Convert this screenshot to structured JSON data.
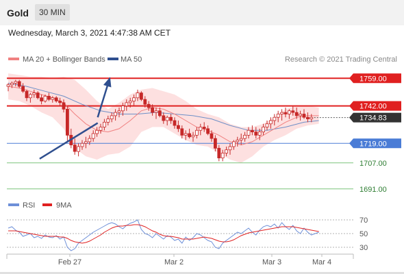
{
  "header": {
    "title": "Gold",
    "timeframe": "30 MIN"
  },
  "datetime": "Wednesday, March 3, 2021 4:47:38 AM CET",
  "legend": {
    "ma20_label": "MA 20 + Bollinger Bands",
    "ma50_label": "MA 50",
    "copyright": "Research © 2021 Trading Central",
    "rsi_label": "RSI",
    "ma9_label": "9MA"
  },
  "colors": {
    "candle": "#c62828",
    "ma20": "#f08080",
    "band": "#fde0e0",
    "ma50": "#6d8fc7",
    "resistance": "#e02020",
    "support_blue": "#4a7cd6",
    "support_green": "#7cc47c",
    "green_text": "#2e7d32",
    "trend": "#2f4f8f",
    "rsi": "#6d8fd8",
    "rsi_ma": "#e02020"
  },
  "chart_data": [
    {
      "type": "candlestick",
      "x_labels": [
        "Feb 27",
        "Mar 2",
        "Mar 3",
        "Mar 4"
      ],
      "ylim": [
        1685,
        1765
      ],
      "current_price": 1734.83,
      "levels": [
        {
          "value": 1759.0,
          "label": "1759.00",
          "style": "resistance"
        },
        {
          "value": 1742.0,
          "label": "1742.00",
          "style": "resistance"
        },
        {
          "value": 1719.0,
          "label": "1719.00",
          "style": "support_blue"
        },
        {
          "value": 1707.0,
          "label": "1707.00",
          "style": "support_green"
        },
        {
          "value": 1691.0,
          "label": "1691.00",
          "style": "support_green"
        }
      ],
      "trendline": [
        [
          8.5,
          1709.5
        ],
        [
          24.2,
          1731.5
        ]
      ],
      "arrow": [
        [
          24.2,
          1735.0
        ],
        [
          27.4,
          1758.6
        ]
      ],
      "candles": [
        [
          1754,
          1756,
          1751,
          1755
        ],
        [
          1755,
          1757,
          1753,
          1756
        ],
        [
          1756,
          1758,
          1754,
          1757
        ],
        [
          1757,
          1758,
          1753,
          1754
        ],
        [
          1754,
          1756,
          1750,
          1751
        ],
        [
          1751,
          1752,
          1745,
          1747
        ],
        [
          1747,
          1750,
          1744,
          1749
        ],
        [
          1749,
          1752,
          1747,
          1750
        ],
        [
          1750,
          1751,
          1746,
          1747
        ],
        [
          1747,
          1749,
          1743,
          1745
        ],
        [
          1745,
          1749,
          1744,
          1748
        ],
        [
          1748,
          1750,
          1745,
          1746
        ],
        [
          1746,
          1748,
          1744,
          1747
        ],
        [
          1747,
          1748,
          1744,
          1745
        ],
        [
          1745,
          1747,
          1742,
          1744
        ],
        [
          1744,
          1746,
          1738,
          1740
        ],
        [
          1740,
          1742,
          1720,
          1724
        ],
        [
          1724,
          1728,
          1716,
          1718
        ],
        [
          1718,
          1722,
          1712,
          1714
        ],
        [
          1714,
          1719,
          1711,
          1717
        ],
        [
          1717,
          1721,
          1715,
          1719
        ],
        [
          1719,
          1723,
          1716,
          1720
        ],
        [
          1720,
          1724,
          1718,
          1722
        ],
        [
          1722,
          1727,
          1720,
          1725
        ],
        [
          1725,
          1729,
          1723,
          1727
        ],
        [
          1727,
          1731,
          1725,
          1729
        ],
        [
          1729,
          1734,
          1727,
          1732
        ],
        [
          1732,
          1736,
          1730,
          1734
        ],
        [
          1734,
          1738,
          1732,
          1736
        ],
        [
          1736,
          1740,
          1733,
          1738
        ],
        [
          1738,
          1741,
          1735,
          1739
        ],
        [
          1739,
          1744,
          1736,
          1742
        ],
        [
          1742,
          1746,
          1739,
          1744
        ],
        [
          1744,
          1747,
          1741,
          1745
        ],
        [
          1745,
          1749,
          1742,
          1747
        ],
        [
          1747,
          1752,
          1745,
          1750
        ],
        [
          1750,
          1751,
          1745,
          1746
        ],
        [
          1746,
          1748,
          1741,
          1743
        ],
        [
          1743,
          1745,
          1739,
          1741
        ],
        [
          1741,
          1743,
          1736,
          1738
        ],
        [
          1738,
          1741,
          1734,
          1739
        ],
        [
          1739,
          1741,
          1735,
          1736
        ],
        [
          1736,
          1738,
          1731,
          1733
        ],
        [
          1733,
          1736,
          1730,
          1735
        ],
        [
          1735,
          1737,
          1731,
          1733
        ],
        [
          1733,
          1735,
          1728,
          1730
        ],
        [
          1730,
          1733,
          1726,
          1728
        ],
        [
          1728,
          1730,
          1722,
          1724
        ],
        [
          1724,
          1727,
          1721,
          1725
        ],
        [
          1725,
          1728,
          1722,
          1723
        ],
        [
          1723,
          1726,
          1720,
          1724
        ],
        [
          1724,
          1729,
          1722,
          1727
        ],
        [
          1727,
          1731,
          1724,
          1729
        ],
        [
          1729,
          1732,
          1726,
          1728
        ],
        [
          1728,
          1730,
          1724,
          1725
        ],
        [
          1725,
          1727,
          1720,
          1722
        ],
        [
          1722,
          1724,
          1714,
          1716
        ],
        [
          1716,
          1718,
          1708,
          1710
        ],
        [
          1710,
          1715,
          1708,
          1713
        ],
        [
          1713,
          1717,
          1711,
          1715
        ],
        [
          1715,
          1719,
          1712,
          1717
        ],
        [
          1717,
          1721,
          1715,
          1720
        ],
        [
          1720,
          1723,
          1717,
          1721
        ],
        [
          1721,
          1725,
          1718,
          1722
        ],
        [
          1722,
          1726,
          1720,
          1724
        ],
        [
          1724,
          1729,
          1722,
          1727
        ],
        [
          1727,
          1730,
          1724,
          1726
        ],
        [
          1726,
          1729,
          1722,
          1724
        ],
        [
          1724,
          1728,
          1721,
          1726
        ],
        [
          1726,
          1731,
          1724,
          1729
        ],
        [
          1729,
          1733,
          1727,
          1731
        ],
        [
          1731,
          1735,
          1728,
          1733
        ],
        [
          1733,
          1737,
          1730,
          1735
        ],
        [
          1735,
          1739,
          1732,
          1737
        ],
        [
          1737,
          1740,
          1733,
          1738
        ],
        [
          1738,
          1741,
          1735,
          1737
        ],
        [
          1737,
          1740,
          1734,
          1739
        ],
        [
          1739,
          1742,
          1736,
          1738
        ],
        [
          1738,
          1741,
          1734,
          1736
        ],
        [
          1736,
          1739,
          1733,
          1737
        ],
        [
          1737,
          1740,
          1734,
          1735
        ],
        [
          1735,
          1738,
          1732,
          1734
        ],
        [
          1734,
          1737,
          1732,
          1735
        ]
      ],
      "ma20": [
        [
          0,
          1754
        ],
        [
          3,
          1753
        ],
        [
          6,
          1751
        ],
        [
          9,
          1749
        ],
        [
          12,
          1747
        ],
        [
          15,
          1744
        ],
        [
          18,
          1737
        ],
        [
          21,
          1731
        ],
        [
          24,
          1727
        ],
        [
          27,
          1726
        ],
        [
          30,
          1728
        ],
        [
          33,
          1733
        ],
        [
          36,
          1739
        ],
        [
          39,
          1741
        ],
        [
          42,
          1740
        ],
        [
          45,
          1737
        ],
        [
          48,
          1733
        ],
        [
          51,
          1729
        ],
        [
          54,
          1727
        ],
        [
          57,
          1724
        ],
        [
          60,
          1720
        ],
        [
          63,
          1718
        ],
        [
          66,
          1720
        ],
        [
          69,
          1724
        ],
        [
          72,
          1728
        ],
        [
          75,
          1732
        ],
        [
          78,
          1735
        ],
        [
          81,
          1736
        ],
        [
          84,
          1736
        ]
      ],
      "band_upper": [
        [
          0,
          1762
        ],
        [
          3,
          1761
        ],
        [
          6,
          1760
        ],
        [
          9,
          1760
        ],
        [
          12,
          1759
        ],
        [
          15,
          1760
        ],
        [
          18,
          1758
        ],
        [
          21,
          1752
        ],
        [
          24,
          1745
        ],
        [
          27,
          1740
        ],
        [
          30,
          1744
        ],
        [
          33,
          1749
        ],
        [
          36,
          1752
        ],
        [
          39,
          1753
        ],
        [
          42,
          1751
        ],
        [
          45,
          1749
        ],
        [
          48,
          1745
        ],
        [
          51,
          1740
        ],
        [
          54,
          1737
        ],
        [
          57,
          1735
        ],
        [
          60,
          1731
        ],
        [
          63,
          1729
        ],
        [
          66,
          1729
        ],
        [
          69,
          1731
        ],
        [
          72,
          1735
        ],
        [
          75,
          1740
        ],
        [
          78,
          1742
        ],
        [
          81,
          1742
        ],
        [
          84,
          1741
        ]
      ],
      "band_lower": [
        [
          0,
          1746
        ],
        [
          3,
          1745
        ],
        [
          6,
          1742
        ],
        [
          9,
          1738
        ],
        [
          12,
          1735
        ],
        [
          15,
          1728
        ],
        [
          18,
          1716
        ],
        [
          21,
          1711
        ],
        [
          24,
          1709
        ],
        [
          27,
          1712
        ],
        [
          30,
          1713
        ],
        [
          33,
          1717
        ],
        [
          36,
          1726
        ],
        [
          39,
          1729
        ],
        [
          42,
          1729
        ],
        [
          45,
          1725
        ],
        [
          48,
          1721
        ],
        [
          51,
          1718
        ],
        [
          54,
          1717
        ],
        [
          57,
          1713
        ],
        [
          60,
          1709
        ],
        [
          63,
          1707
        ],
        [
          66,
          1711
        ],
        [
          69,
          1717
        ],
        [
          72,
          1721
        ],
        [
          75,
          1724
        ],
        [
          78,
          1728
        ],
        [
          81,
          1730
        ],
        [
          84,
          1731
        ]
      ],
      "ma50": [
        [
          0,
          1756
        ],
        [
          5,
          1754
        ],
        [
          10,
          1751
        ],
        [
          15,
          1748
        ],
        [
          20,
          1743
        ],
        [
          25,
          1739
        ],
        [
          30,
          1737
        ],
        [
          35,
          1737
        ],
        [
          40,
          1738
        ],
        [
          45,
          1737
        ],
        [
          50,
          1736
        ],
        [
          55,
          1734
        ],
        [
          60,
          1730
        ],
        [
          65,
          1727
        ],
        [
          70,
          1727
        ],
        [
          75,
          1729
        ],
        [
          80,
          1732
        ],
        [
          84,
          1733
        ]
      ]
    },
    {
      "type": "line",
      "ylim": [
        20,
        80
      ],
      "y_ticks": [
        70,
        50,
        30
      ],
      "series": [
        {
          "name": "RSI",
          "values": [
            58,
            60,
            55,
            52,
            46,
            48,
            50,
            44,
            46,
            43,
            48,
            45,
            44,
            47,
            42,
            45,
            30,
            25,
            28,
            36,
            40,
            44,
            48,
            52,
            55,
            58,
            61,
            64,
            66,
            64,
            60,
            57,
            62,
            65,
            67,
            70,
            56,
            50,
            48,
            44,
            50,
            46,
            42,
            47,
            45,
            40,
            42,
            36,
            45,
            40,
            44,
            50,
            48,
            44,
            40,
            38,
            30,
            28,
            36,
            40,
            44,
            48,
            52,
            50,
            54,
            58,
            52,
            48,
            55,
            60,
            62,
            60,
            64,
            58,
            66,
            60,
            56,
            62,
            54,
            50,
            58,
            52,
            48,
            50,
            52
          ]
        },
        {
          "name": "9MA",
          "values": [
            54,
            54,
            54,
            53,
            52,
            51,
            50,
            49,
            48,
            47,
            46,
            46,
            46,
            46,
            45,
            45,
            43,
            40,
            38,
            37,
            36,
            37,
            39,
            42,
            45,
            48,
            52,
            55,
            58,
            60,
            61,
            61,
            62,
            62,
            63,
            63,
            62,
            60,
            57,
            54,
            52,
            49,
            47,
            46,
            46,
            45,
            44,
            42,
            42,
            42,
            42,
            43,
            44,
            45,
            44,
            43,
            41,
            39,
            38,
            38,
            39,
            41,
            44,
            47,
            49,
            51,
            52,
            53,
            54,
            55,
            56,
            57,
            58,
            59,
            60,
            60,
            60,
            60,
            59,
            58,
            57,
            56,
            55,
            54,
            53
          ]
        }
      ]
    }
  ]
}
